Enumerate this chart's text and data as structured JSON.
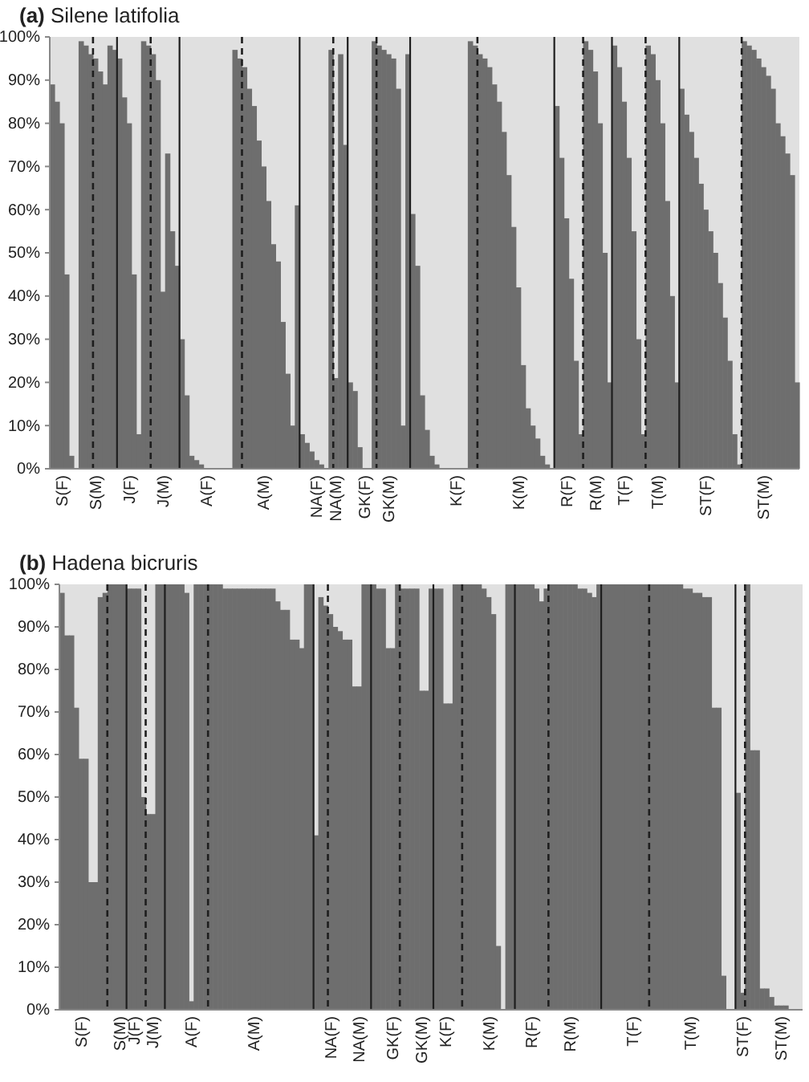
{
  "chart_data": [
    {
      "type": "bar",
      "title": "(a) Silene latifolia",
      "color": "#6e6e6e",
      "ylim": [
        0,
        100
      ],
      "yticks": [
        {
          "value": 0,
          "label": "0%"
        },
        {
          "value": 10,
          "label": "10%"
        },
        {
          "value": 20,
          "label": "20%"
        },
        {
          "value": 30,
          "label": "30%"
        },
        {
          "value": 40,
          "label": "40%"
        },
        {
          "value": 50,
          "label": "50%"
        },
        {
          "value": 60,
          "label": "60%"
        },
        {
          "value": 70,
          "label": "70%"
        },
        {
          "value": 80,
          "label": "80%"
        },
        {
          "value": 90,
          "label": "90%"
        },
        {
          "value": 100,
          "label": "100%"
        }
      ],
      "categories": [
        null,
        null,
        "S(F)",
        null,
        null,
        null,
        null,
        null,
        null,
        "S(M)",
        null,
        null,
        null,
        null,
        null,
        null,
        "J(F)",
        null,
        null,
        null,
        null,
        null,
        null,
        "J(M)",
        null,
        null,
        null,
        null,
        null,
        null,
        null,
        null,
        "A(F)",
        null,
        null,
        null,
        null,
        null,
        null,
        null,
        null,
        null,
        null,
        null,
        "A(M)",
        null,
        null,
        null,
        null,
        null,
        null,
        null,
        null,
        null,
        null,
        "NA(F)",
        null,
        null,
        null,
        "NA(M)",
        null,
        null,
        null,
        null,
        null,
        "GK(F)",
        null,
        null,
        null,
        null,
        "GK(M)",
        null,
        null,
        null,
        null,
        null,
        null,
        null,
        null,
        null,
        null,
        null,
        null,
        null,
        "K(F)",
        null,
        null,
        null,
        null,
        null,
        null,
        null,
        null,
        null,
        null,
        null,
        null,
        "K(M)",
        null,
        null,
        null,
        null,
        null,
        null,
        null,
        null,
        null,
        "R(F)",
        null,
        null,
        null,
        null,
        null,
        "R(M)",
        null,
        null,
        null,
        null,
        null,
        "T(F)",
        null,
        null,
        null,
        null,
        null,
        null,
        "T(M)",
        null,
        null,
        null,
        null,
        null,
        null,
        null,
        null,
        null,
        "ST(F)",
        null,
        null,
        null,
        null,
        null,
        null,
        null,
        null,
        null,
        null,
        null,
        "ST(M)",
        null,
        null,
        null,
        null,
        null,
        null,
        null
      ],
      "values": [
        89,
        85,
        80,
        45,
        3,
        0,
        99,
        98,
        96,
        95,
        92,
        89,
        98,
        97,
        95,
        86,
        80,
        45,
        8,
        99,
        98,
        96,
        90,
        41,
        73,
        55,
        47,
        30,
        17,
        3,
        2,
        1,
        0,
        0,
        0,
        0,
        0,
        0,
        97,
        95,
        93,
        88,
        84,
        76,
        70,
        62,
        52,
        48,
        34,
        22,
        10,
        61,
        8,
        6,
        4,
        2,
        1,
        0,
        97,
        21,
        96,
        75,
        20,
        18,
        5,
        0,
        0,
        99,
        98,
        97,
        96,
        95,
        88,
        10,
        96,
        59,
        47,
        17,
        9,
        3,
        1,
        0,
        0,
        0,
        0,
        0,
        0,
        99,
        98,
        96,
        95,
        93,
        89,
        85,
        78,
        68,
        56,
        42,
        24,
        14,
        10,
        7,
        3,
        1,
        0,
        84,
        72,
        58,
        44,
        25,
        8,
        99,
        97,
        92,
        80,
        50,
        20,
        98,
        93,
        85,
        72,
        55,
        30,
        8,
        98,
        96,
        90,
        80,
        62,
        40,
        20,
        88,
        82,
        78,
        72,
        66,
        60,
        55,
        50,
        43,
        35,
        25,
        8,
        1,
        99,
        98,
        97,
        95,
        93,
        91,
        88,
        80,
        77,
        73,
        68,
        20
      ]
    },
    {
      "type": "bar",
      "title": "(b) Hadena bicruris",
      "color": "#6e6e6e",
      "ylim": [
        0,
        100
      ],
      "yticks": [
        {
          "value": 0,
          "label": "0%"
        },
        {
          "value": 10,
          "label": "10%"
        },
        {
          "value": 20,
          "label": "20%"
        },
        {
          "value": 30,
          "label": "30%"
        },
        {
          "value": 40,
          "label": "40%"
        },
        {
          "value": 50,
          "label": "50%"
        },
        {
          "value": 60,
          "label": "60%"
        },
        {
          "value": 70,
          "label": "70%"
        },
        {
          "value": 80,
          "label": "80%"
        },
        {
          "value": 90,
          "label": "90%"
        },
        {
          "value": 100,
          "label": "100%"
        }
      ],
      "categories": [
        null,
        null,
        null,
        null,
        "S(F)",
        null,
        null,
        null,
        null,
        null,
        null,
        null,
        "S(M)",
        null,
        null,
        "J(F)",
        null,
        null,
        null,
        "J(M)",
        null,
        null,
        null,
        null,
        null,
        null,
        null,
        "A(F)",
        null,
        null,
        null,
        null,
        null,
        null,
        null,
        null,
        null,
        null,
        null,
        null,
        "A(M)",
        null,
        null,
        null,
        null,
        null,
        null,
        null,
        null,
        null,
        null,
        null,
        null,
        null,
        null,
        null,
        "NA(F)",
        null,
        null,
        null,
        null,
        null,
        "NA(M)",
        null,
        null,
        null,
        null,
        null,
        null,
        "GK(F)",
        null,
        null,
        null,
        null,
        null,
        "GK(M)",
        null,
        null,
        null,
        null,
        "K(F)",
        null,
        null,
        null,
        null,
        null,
        null,
        null,
        null,
        "K(M)",
        null,
        null,
        null,
        null,
        null,
        null,
        null,
        null,
        "R(F)",
        null,
        null,
        null,
        null,
        null,
        null,
        null,
        "R(M)",
        null,
        null,
        null,
        null,
        null,
        null,
        null,
        null,
        null,
        null,
        null,
        null,
        "T(F)",
        null,
        null,
        null,
        null,
        null,
        null,
        null,
        null,
        null,
        null,
        null,
        "T(M)",
        null,
        null,
        null,
        null,
        null,
        null,
        null,
        null,
        null,
        null,
        "ST(F)",
        null,
        null,
        null,
        null,
        null,
        null,
        null,
        "ST(M)",
        null,
        null,
        null,
        null
      ],
      "values": [
        98,
        88,
        88,
        71,
        59,
        59,
        30,
        30,
        97,
        98,
        100,
        100,
        100,
        100,
        99,
        99,
        99,
        50,
        46,
        46,
        100,
        100,
        100,
        100,
        100,
        100,
        98,
        2,
        100,
        100,
        100,
        100,
        100,
        100,
        99,
        99,
        99,
        99,
        99,
        99,
        99,
        99,
        99,
        99,
        99,
        96,
        94,
        94,
        87,
        87,
        85,
        100,
        100,
        41,
        97,
        95,
        93,
        90,
        89,
        87,
        87,
        76,
        76,
        100,
        100,
        100,
        99,
        99,
        85,
        85,
        100,
        99,
        99,
        99,
        99,
        75,
        75,
        99,
        99,
        99,
        72,
        72,
        100,
        100,
        100,
        100,
        100,
        100,
        99,
        97,
        93,
        15,
        0,
        100,
        100,
        100,
        100,
        100,
        100,
        99,
        96,
        99,
        100,
        100,
        100,
        100,
        100,
        100,
        99,
        99,
        98,
        97,
        100,
        100,
        100,
        100,
        100,
        100,
        100,
        100,
        100,
        100,
        100,
        100,
        100,
        100,
        100,
        100,
        100,
        100,
        99,
        99,
        98,
        98,
        97,
        97,
        71,
        71,
        8,
        0,
        0,
        51,
        4,
        100,
        61,
        61,
        5,
        5,
        3,
        1,
        1,
        1,
        0,
        0,
        0
      ]
    }
  ]
}
